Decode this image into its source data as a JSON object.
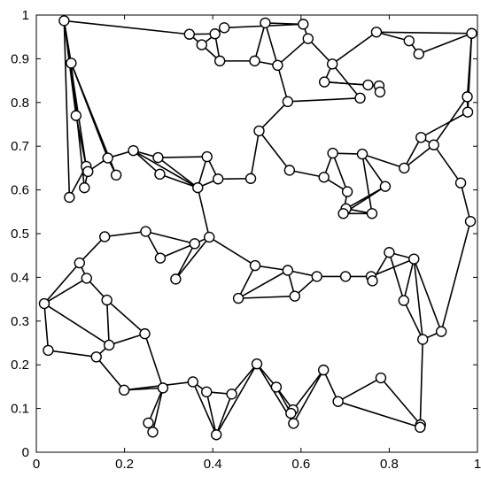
{
  "chart_data": {
    "type": "scatter",
    "xlim": [
      0,
      1
    ],
    "ylim": [
      0,
      1
    ],
    "grid": false,
    "x_ticks": [
      "0",
      "0.2",
      "0.4",
      "0.6",
      "0.8",
      "1"
    ],
    "y_ticks": [
      "0",
      "0.1",
      "0.2",
      "0.3",
      "0.4",
      "0.5",
      "0.6",
      "0.7",
      "0.8",
      "0.9",
      "1"
    ],
    "nodes": [
      [
        0.063,
        0.987
      ],
      [
        0.079,
        0.89
      ],
      [
        0.09,
        0.77
      ],
      [
        0.113,
        0.654
      ],
      [
        0.117,
        0.642
      ],
      [
        0.075,
        0.583
      ],
      [
        0.109,
        0.605
      ],
      [
        0.162,
        0.673
      ],
      [
        0.181,
        0.634
      ],
      [
        0.22,
        0.69
      ],
      [
        0.276,
        0.674
      ],
      [
        0.28,
        0.636
      ],
      [
        0.366,
        0.605
      ],
      [
        0.412,
        0.625
      ],
      [
        0.387,
        0.676
      ],
      [
        0.347,
        0.956
      ],
      [
        0.375,
        0.932
      ],
      [
        0.405,
        0.957
      ],
      [
        0.426,
        0.971
      ],
      [
        0.416,
        0.895
      ],
      [
        0.495,
        0.895
      ],
      [
        0.519,
        0.982
      ],
      [
        0.605,
        0.979
      ],
      [
        0.616,
        0.946
      ],
      [
        0.547,
        0.885
      ],
      [
        0.57,
        0.802
      ],
      [
        0.671,
        0.888
      ],
      [
        0.653,
        0.847
      ],
      [
        0.734,
        0.81
      ],
      [
        0.752,
        0.84
      ],
      [
        0.777,
        0.838
      ],
      [
        0.779,
        0.824
      ],
      [
        0.771,
        0.961
      ],
      [
        0.845,
        0.941
      ],
      [
        0.867,
        0.911
      ],
      [
        0.987,
        0.958
      ],
      [
        0.977,
        0.813
      ],
      [
        0.978,
        0.778
      ],
      [
        0.901,
        0.703
      ],
      [
        0.872,
        0.72
      ],
      [
        0.834,
        0.65
      ],
      [
        0.962,
        0.616
      ],
      [
        0.984,
        0.528
      ],
      [
        0.505,
        0.735
      ],
      [
        0.574,
        0.645
      ],
      [
        0.486,
        0.626
      ],
      [
        0.652,
        0.629
      ],
      [
        0.672,
        0.684
      ],
      [
        0.705,
        0.596
      ],
      [
        0.739,
        0.682
      ],
      [
        0.761,
        0.546
      ],
      [
        0.791,
        0.608
      ],
      [
        0.702,
        0.557
      ],
      [
        0.696,
        0.546
      ],
      [
        0.155,
        0.493
      ],
      [
        0.248,
        0.505
      ],
      [
        0.281,
        0.444
      ],
      [
        0.359,
        0.477
      ],
      [
        0.392,
        0.492
      ],
      [
        0.316,
        0.396
      ],
      [
        0.496,
        0.427
      ],
      [
        0.57,
        0.416
      ],
      [
        0.458,
        0.352
      ],
      [
        0.586,
        0.357
      ],
      [
        0.636,
        0.402
      ],
      [
        0.701,
        0.402
      ],
      [
        0.759,
        0.402
      ],
      [
        0.762,
        0.392
      ],
      [
        0.8,
        0.457
      ],
      [
        0.856,
        0.442
      ],
      [
        0.833,
        0.347
      ],
      [
        0.876,
        0.258
      ],
      [
        0.918,
        0.276
      ],
      [
        0.098,
        0.433
      ],
      [
        0.114,
        0.398
      ],
      [
        0.018,
        0.34
      ],
      [
        0.16,
        0.348
      ],
      [
        0.165,
        0.245
      ],
      [
        0.246,
        0.271
      ],
      [
        0.027,
        0.233
      ],
      [
        0.136,
        0.218
      ],
      [
        0.199,
        0.142
      ],
      [
        0.287,
        0.147
      ],
      [
        0.254,
        0.067
      ],
      [
        0.264,
        0.046
      ],
      [
        0.355,
        0.161
      ],
      [
        0.386,
        0.138
      ],
      [
        0.408,
        0.04
      ],
      [
        0.443,
        0.133
      ],
      [
        0.5,
        0.202
      ],
      [
        0.544,
        0.149
      ],
      [
        0.582,
        0.097
      ],
      [
        0.577,
        0.089
      ],
      [
        0.583,
        0.066
      ],
      [
        0.651,
        0.188
      ],
      [
        0.684,
        0.116
      ],
      [
        0.781,
        0.17
      ],
      [
        0.871,
        0.063
      ],
      [
        0.87,
        0.057
      ]
    ],
    "edges": [
      [
        0,
        1
      ],
      [
        0,
        2
      ],
      [
        0,
        3
      ],
      [
        0,
        5
      ],
      [
        0,
        15
      ],
      [
        1,
        2
      ],
      [
        1,
        6
      ],
      [
        1,
        7
      ],
      [
        1,
        8
      ],
      [
        2,
        3
      ],
      [
        3,
        4
      ],
      [
        3,
        5
      ],
      [
        4,
        6
      ],
      [
        4,
        7
      ],
      [
        7,
        8
      ],
      [
        7,
        9
      ],
      [
        9,
        10
      ],
      [
        9,
        11
      ],
      [
        9,
        12
      ],
      [
        10,
        14
      ],
      [
        10,
        12
      ],
      [
        11,
        12
      ],
      [
        12,
        14
      ],
      [
        12,
        13
      ],
      [
        13,
        14
      ],
      [
        13,
        45
      ],
      [
        15,
        16
      ],
      [
        15,
        17
      ],
      [
        16,
        19
      ],
      [
        17,
        18
      ],
      [
        16,
        18
      ],
      [
        17,
        19
      ],
      [
        18,
        22
      ],
      [
        19,
        20
      ],
      [
        20,
        21
      ],
      [
        20,
        24
      ],
      [
        21,
        22
      ],
      [
        21,
        24
      ],
      [
        22,
        23
      ],
      [
        23,
        24
      ],
      [
        23,
        26
      ],
      [
        24,
        25
      ],
      [
        25,
        28
      ],
      [
        25,
        43
      ],
      [
        26,
        27
      ],
      [
        26,
        28
      ],
      [
        27,
        29
      ],
      [
        27,
        30
      ],
      [
        26,
        32
      ],
      [
        32,
        33
      ],
      [
        32,
        35
      ],
      [
        33,
        34
      ],
      [
        34,
        35
      ],
      [
        35,
        36
      ],
      [
        35,
        37
      ],
      [
        36,
        37
      ],
      [
        36,
        38
      ],
      [
        37,
        39
      ],
      [
        38,
        39
      ],
      [
        38,
        40
      ],
      [
        38,
        41
      ],
      [
        41,
        42
      ],
      [
        39,
        40
      ],
      [
        40,
        49
      ],
      [
        43,
        44
      ],
      [
        43,
        45
      ],
      [
        44,
        46
      ],
      [
        46,
        47
      ],
      [
        46,
        48
      ],
      [
        47,
        48
      ],
      [
        47,
        49
      ],
      [
        49,
        51
      ],
      [
        49,
        50
      ],
      [
        50,
        52
      ],
      [
        51,
        52
      ],
      [
        51,
        53
      ],
      [
        48,
        53
      ],
      [
        12,
        58
      ],
      [
        58,
        57
      ],
      [
        57,
        55
      ],
      [
        55,
        56
      ],
      [
        56,
        57
      ],
      [
        57,
        59
      ],
      [
        58,
        59
      ],
      [
        55,
        54
      ],
      [
        54,
        73
      ],
      [
        73,
        74
      ],
      [
        73,
        75
      ],
      [
        74,
        75
      ],
      [
        74,
        76
      ],
      [
        75,
        79
      ],
      [
        75,
        77
      ],
      [
        76,
        77
      ],
      [
        76,
        78
      ],
      [
        77,
        80
      ],
      [
        77,
        78
      ],
      [
        79,
        80
      ],
      [
        80,
        81
      ],
      [
        81,
        82
      ],
      [
        81,
        85
      ],
      [
        78,
        82
      ],
      [
        82,
        83
      ],
      [
        82,
        84
      ],
      [
        83,
        84
      ],
      [
        85,
        86
      ],
      [
        85,
        87
      ],
      [
        86,
        87
      ],
      [
        86,
        88
      ],
      [
        88,
        87
      ],
      [
        87,
        89
      ],
      [
        89,
        88
      ],
      [
        89,
        90
      ],
      [
        89,
        93
      ],
      [
        90,
        91
      ],
      [
        90,
        92
      ],
      [
        91,
        94
      ],
      [
        93,
        94
      ],
      [
        94,
        95
      ],
      [
        95,
        96
      ],
      [
        96,
        97
      ],
      [
        97,
        98
      ],
      [
        97,
        99
      ],
      [
        95,
        98
      ],
      [
        58,
        60
      ],
      [
        60,
        61
      ],
      [
        60,
        62
      ],
      [
        61,
        62
      ],
      [
        61,
        63
      ],
      [
        62,
        63
      ],
      [
        61,
        64
      ],
      [
        63,
        64
      ],
      [
        64,
        65
      ],
      [
        65,
        66
      ],
      [
        66,
        67
      ],
      [
        67,
        68
      ],
      [
        68,
        69
      ],
      [
        66,
        69
      ],
      [
        69,
        70
      ],
      [
        68,
        70
      ],
      [
        70,
        71
      ],
      [
        69,
        71
      ],
      [
        71,
        72
      ],
      [
        69,
        72
      ],
      [
        72,
        42
      ],
      [
        71,
        98
      ],
      [
        53,
        50
      ]
    ]
  }
}
